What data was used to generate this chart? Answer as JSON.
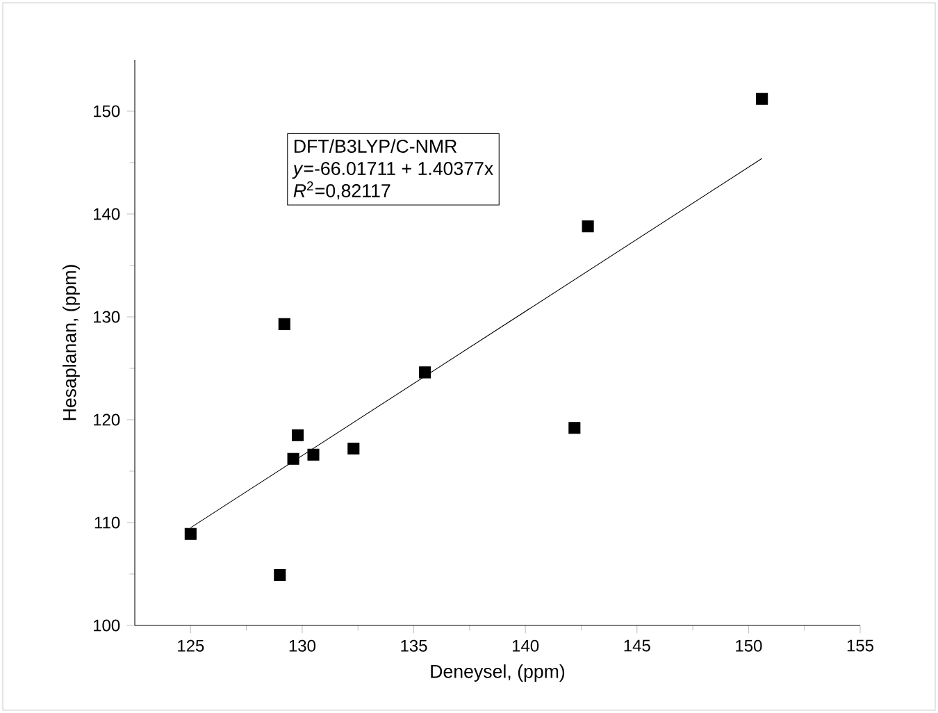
{
  "chart_data": {
    "type": "scatter",
    "xlabel": "Deneysel, (ppm)",
    "ylabel": "Hesaplanan, (ppm)",
    "xlim": [
      122.5,
      155
    ],
    "ylim": [
      100,
      155
    ],
    "xticks": [
      125,
      130,
      135,
      140,
      145,
      150,
      155
    ],
    "yticks": [
      100,
      110,
      120,
      130,
      140,
      150
    ],
    "grid": false,
    "series": [
      {
        "color": "#000000",
        "marker": "square",
        "x": [
          125,
          129.0,
          129.2,
          129.6,
          129.8,
          130.5,
          132.3,
          135.5,
          142.2,
          142.8,
          150.6
        ],
        "values": [
          108.9,
          104.9,
          129.3,
          116.2,
          118.5,
          116.6,
          117.2,
          124.6,
          119.2,
          138.8,
          151.2
        ]
      },
      {
        "type": "line",
        "color": "#000000",
        "x": [
          125,
          150.6
        ],
        "values": [
          109.5,
          145.4
        ]
      }
    ],
    "annotations": [
      "DFT/B3LYP/C-NMR",
      "*y*=-66.01711 + 1.40377x",
      "*R*$^{2}$=0,82117"
    ]
  }
}
